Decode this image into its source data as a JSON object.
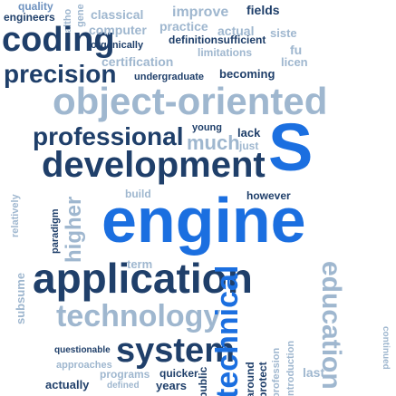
{
  "words": {
    "quality": "quality",
    "engineers": "engineers",
    "coding": "coding",
    "organically": "organically",
    "computer": "computer",
    "classical": "classical",
    "improve": "improve",
    "fields": "fields",
    "practice": "practice",
    "actual": "actual",
    "definition": "definition",
    "sufficient": "sufficient",
    "limitations": "limitations",
    "system_small": "siste",
    "fu": "fu",
    "licen": "licen",
    "certification": "certification",
    "precision": "precision",
    "undergraduate": "undergraduate",
    "becoming": "becoming",
    "object_oriented": "object-oriented",
    "professional": "professional",
    "young": "young",
    "much": "much",
    "lack": "lack",
    "just": "just",
    "development": "development",
    "s_big": "S",
    "build": "build",
    "however": "however",
    "relatively": "relatively",
    "paradigm": "paradigm",
    "higher": "higher",
    "engine": "engine",
    "term": "term",
    "subsume": "subsume",
    "application": "application",
    "technology": "technology",
    "questionable": "questionable",
    "system": "system",
    "technical": "technical",
    "education": "education",
    "approaches": "approaches",
    "programs": "programs",
    "quicker": "quicker",
    "actually": "actually",
    "defined": "defined",
    "years": "years",
    "public": "public",
    "last": "last",
    "around": "around",
    "protect": "protect",
    "profession": "profession",
    "introduction": "introduction",
    "alt": "altho",
    "gen": "gene",
    "contin": "continued"
  }
}
